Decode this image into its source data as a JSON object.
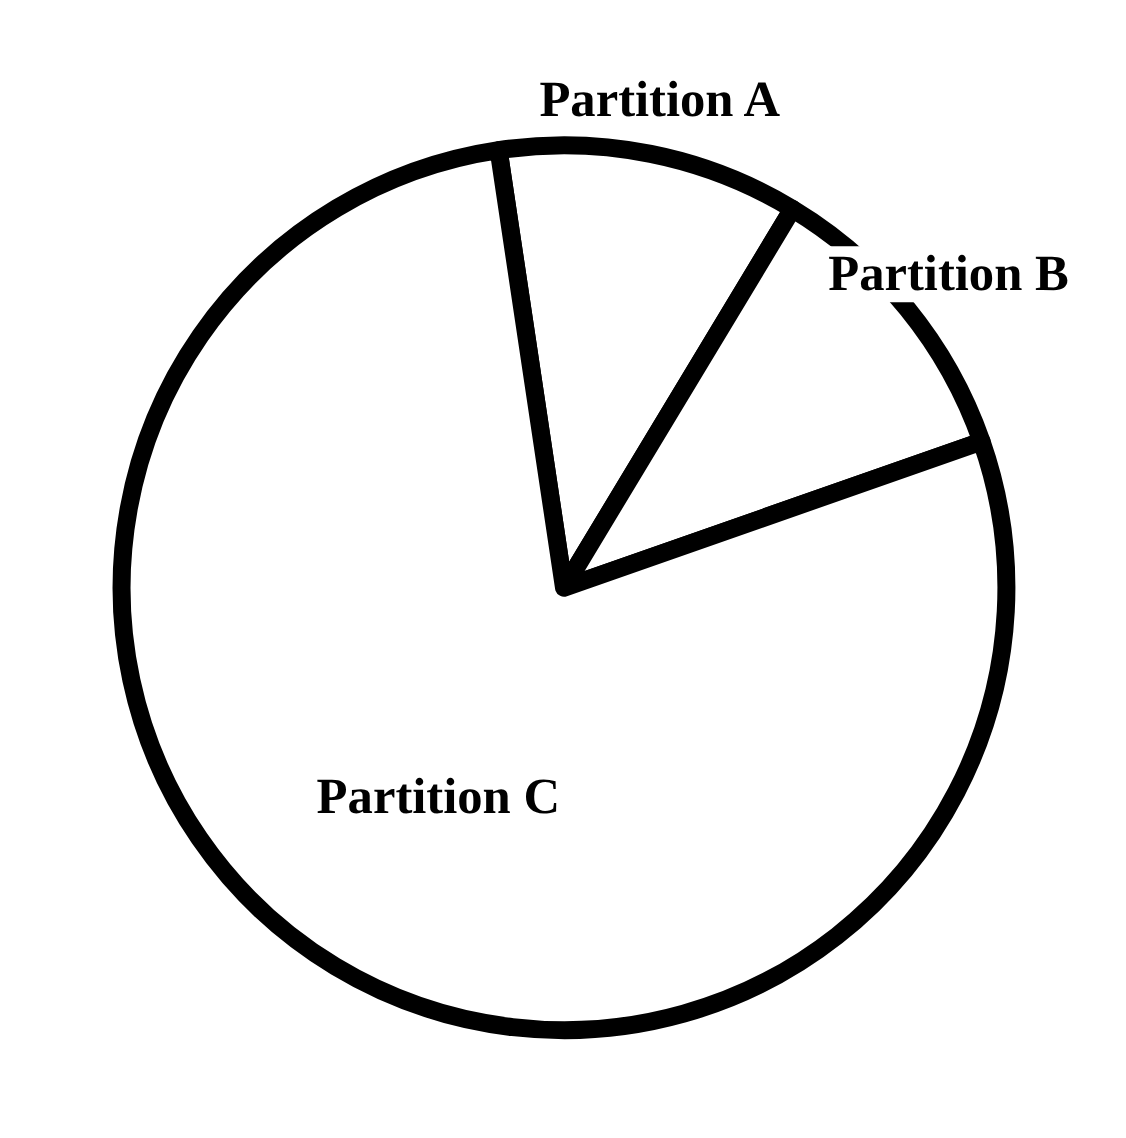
{
  "chart_data": {
    "type": "pie",
    "categories": [
      "Partition A",
      "Partition B",
      "Partition C"
    ],
    "values": [
      11,
      11,
      78
    ],
    "colors": [
      "#ffffff",
      "#ffffff",
      "#ffffff"
    ]
  }
}
